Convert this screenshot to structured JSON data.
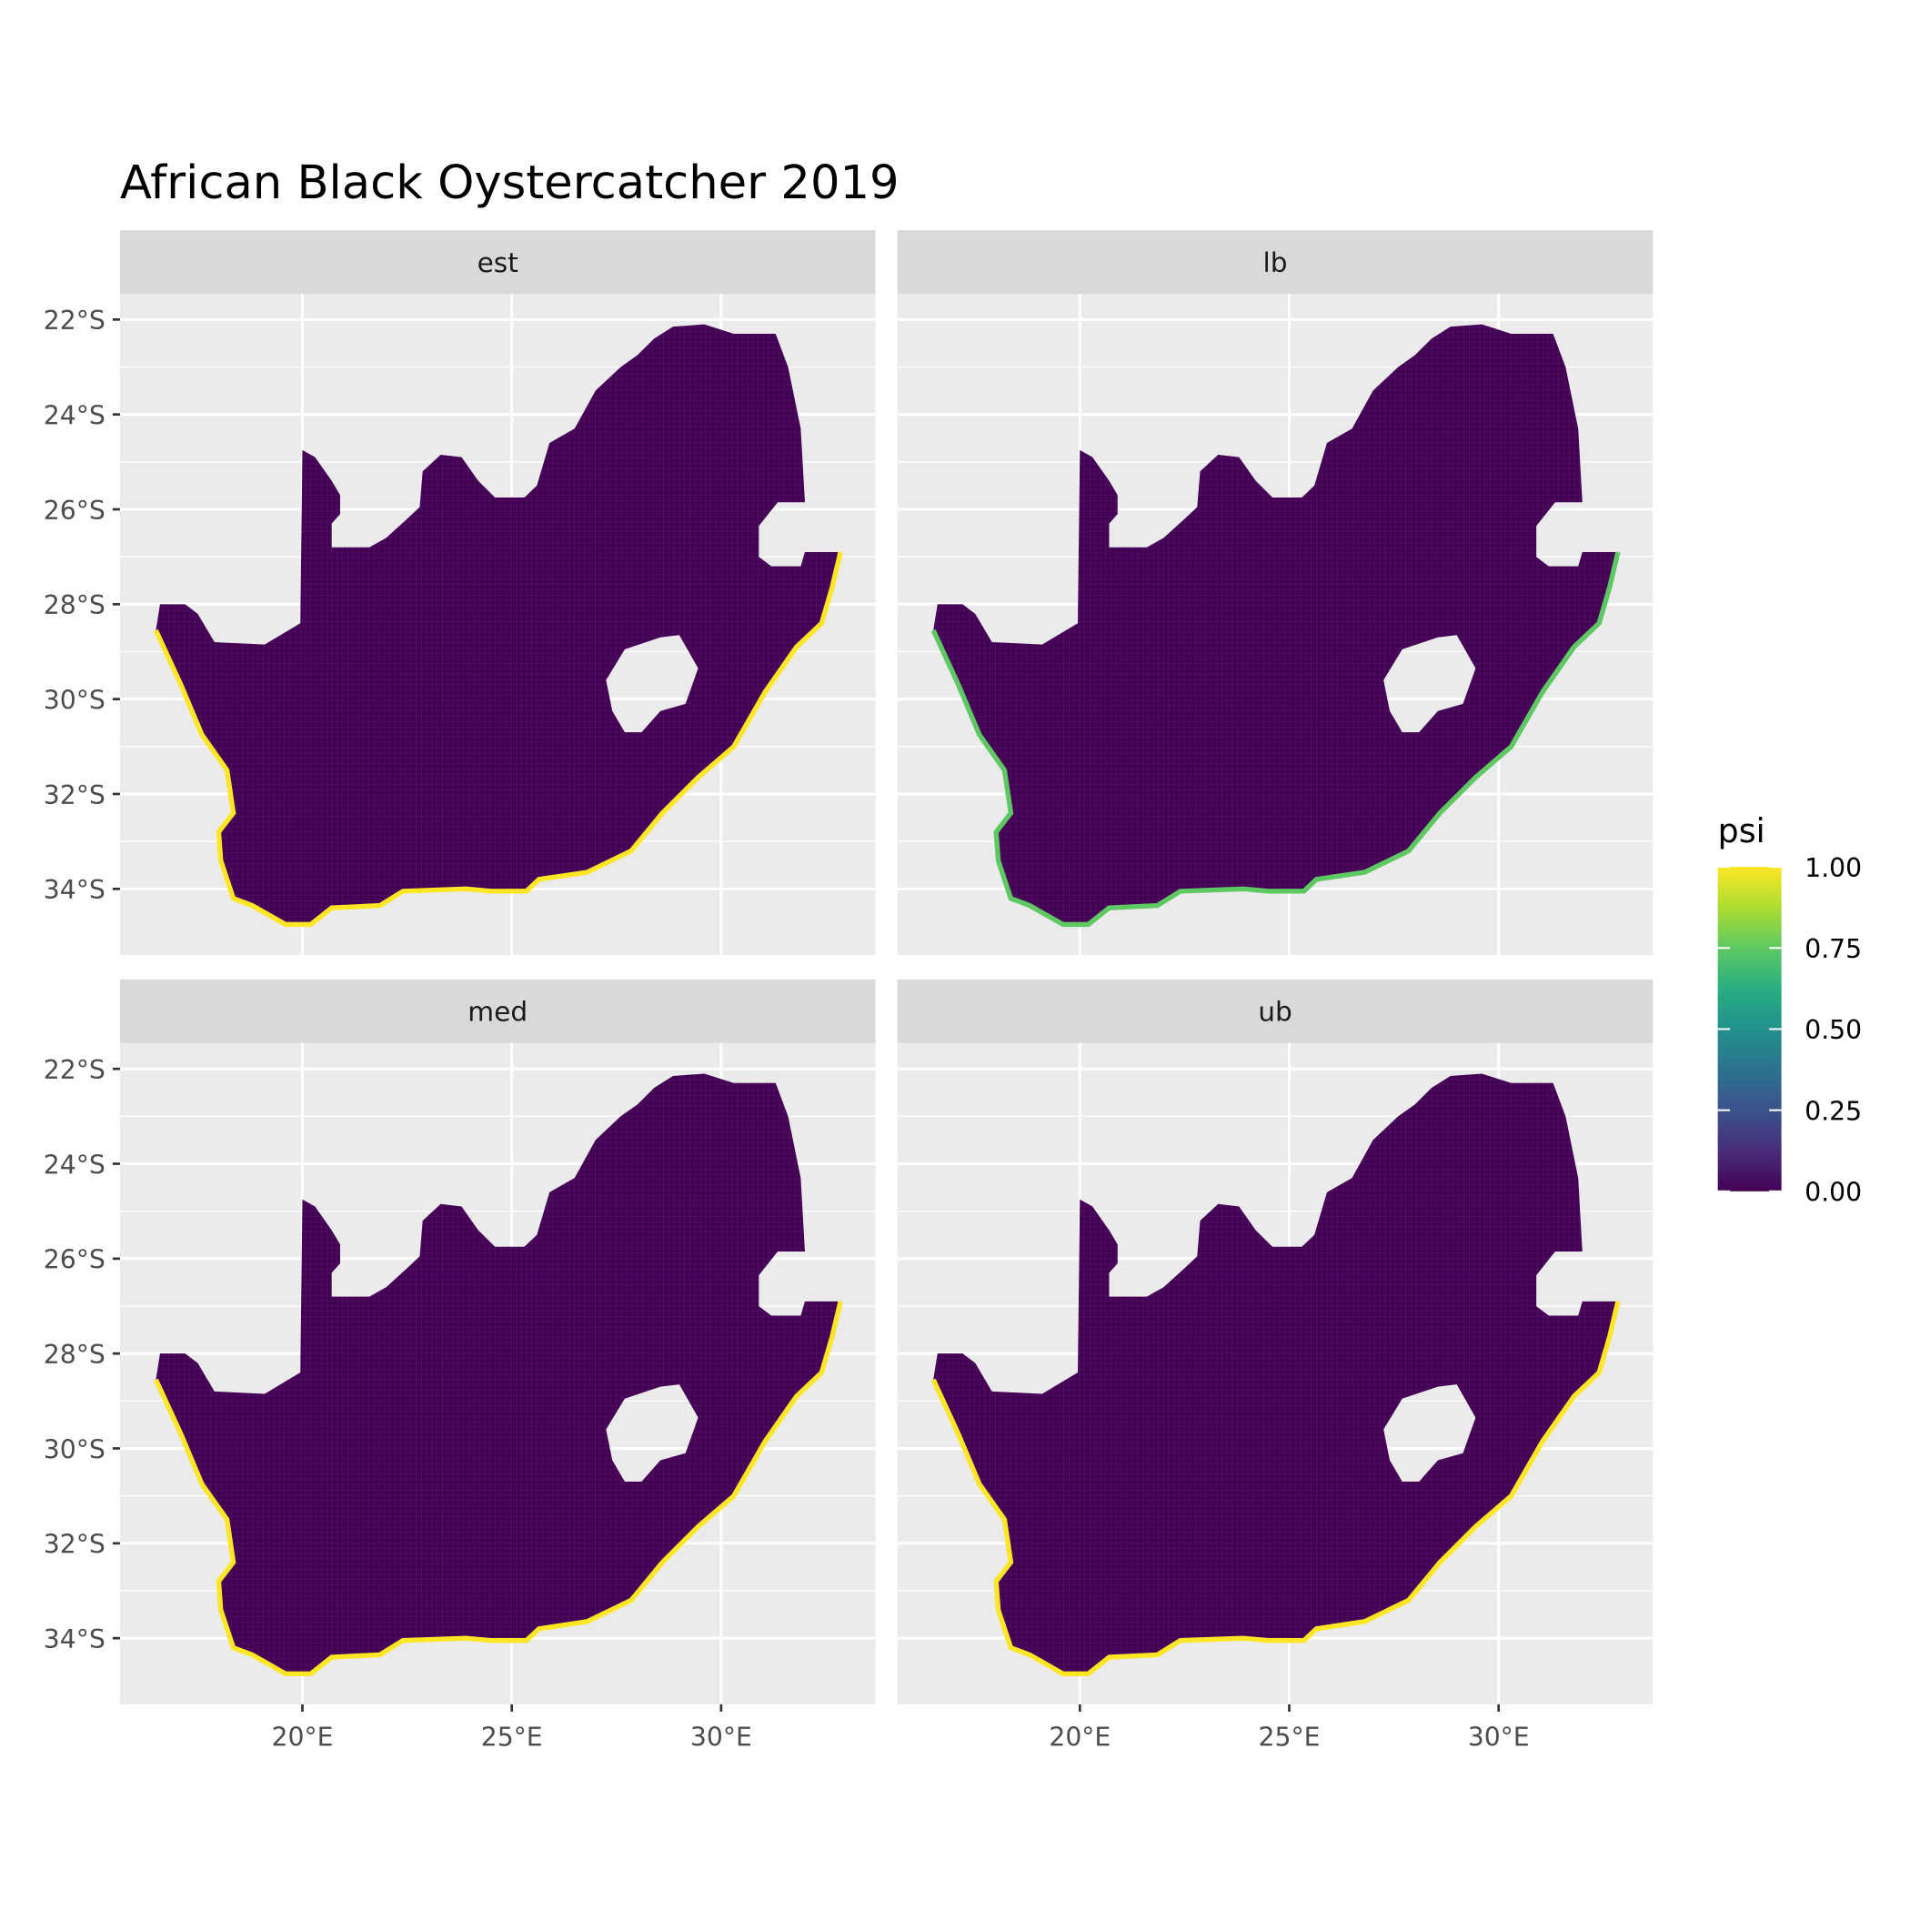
{
  "chart_data": {
    "type": "heatmap",
    "title": "African Black Oystercatcher 2019",
    "xlabel": "",
    "ylabel": "",
    "facets": [
      "est",
      "lb",
      "med",
      "ub"
    ],
    "x_ticks": [
      20,
      25,
      30
    ],
    "x_tick_labels": [
      "20°E",
      "25°E",
      "30°E"
    ],
    "y_ticks": [
      -22,
      -24,
      -26,
      -28,
      -30,
      -32,
      -34
    ],
    "y_tick_labels": [
      "22°S",
      "24°S",
      "26°S",
      "28°S",
      "30°S",
      "32°S",
      "34°S"
    ],
    "xlim": [
      15.7,
      33.8
    ],
    "ylim": [
      -35.5,
      -21.5
    ],
    "grid": true,
    "legend": {
      "title": "psi",
      "position": "right",
      "range": [
        0,
        1
      ],
      "breaks": [
        1.0,
        0.75,
        0.5,
        0.25,
        0.0
      ],
      "labels": [
        "1.00",
        "0.75",
        "0.50",
        "0.25",
        "0.00"
      ],
      "colormap": "viridis"
    },
    "interior_psi_approx": 0.0,
    "coastal_psi_approx": {
      "est": 1.0,
      "lb": 0.75,
      "med": 1.0,
      "ub": 1.0
    },
    "colors": {
      "low": "#440154",
      "high": "#fde725",
      "panel_bg": "#ebebeb",
      "strip_bg": "#d9d9d9",
      "gridline": "#ffffff"
    }
  }
}
